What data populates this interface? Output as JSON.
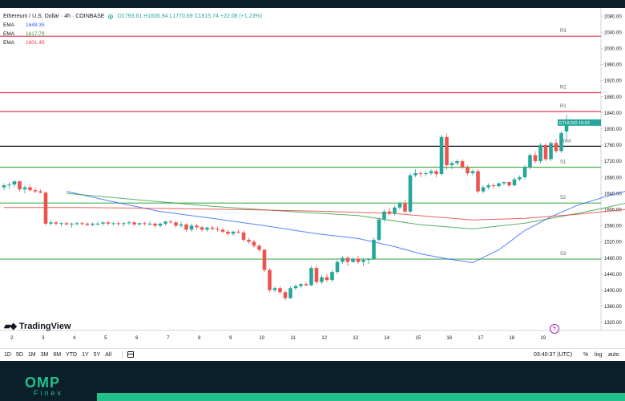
{
  "legend": {
    "symbol": "Ethereum / U.S. Dollar · 4h · COINBASE",
    "ohlc": "O1793.61 H1835.94 L1770.69 C1815.74 +22.08 (+1.23%)",
    "emas": [
      {
        "name": "EMA",
        "value": "1648.35",
        "color": "#2962ff"
      },
      {
        "name": "EMA",
        "value": "1617.79",
        "color": "#2e9e3c"
      },
      {
        "name": "EMA",
        "value": "1601.45",
        "color": "#e53935"
      }
    ]
  },
  "branding": {
    "chart_logo": "TradingView",
    "omp": "OMP",
    "finex": "Finex"
  },
  "toolbar": {
    "timeframes": [
      "1D",
      "5D",
      "1M",
      "3M",
      "6M",
      "YTD",
      "1Y",
      "5Y",
      "All"
    ],
    "clock": "03:40:37 (UTC)",
    "percent": "%",
    "log": "log",
    "auto": "auto"
  },
  "colors": {
    "up": "#26a69a",
    "down": "#ef5350",
    "resistance": "#e53950",
    "support": "#4caf50",
    "pivot": "#131722",
    "brand": "#22c08b"
  },
  "chart_data": {
    "type": "candlestick",
    "symbol": "ETHUSD",
    "last_price": "1815.74",
    "countdown": "19:53",
    "ylim": [
      1300,
      2100
    ],
    "y_ticks": [
      1320,
      1360,
      1400,
      1440,
      1480,
      1520,
      1560,
      1600,
      1640,
      1680,
      1720,
      1760,
      1800,
      1840,
      1880,
      1920,
      1960,
      2000,
      2040,
      2080
    ],
    "x_ticks": [
      "2",
      "3",
      "4",
      "5",
      "6",
      "7",
      "8",
      "9",
      "10",
      "11",
      "12",
      "13",
      "14",
      "15",
      "16",
      "17",
      "18",
      "19"
    ],
    "x_tick_positions": [
      1.5,
      7.5,
      13.5,
      19.5,
      25.5,
      31.5,
      37.5,
      43.5,
      49.5,
      55.5,
      61.5,
      67.5,
      73.5,
      79.5,
      85.5,
      91.5,
      97.5,
      103.5
    ],
    "levels": [
      {
        "label": "R3",
        "value": 2030,
        "kind": "resistance"
      },
      {
        "label": "R2",
        "value": 1890,
        "kind": "resistance"
      },
      {
        "label": "R1",
        "value": 1843,
        "kind": "resistance"
      },
      {
        "label": "Pivot",
        "value": 1757,
        "kind": "pivot"
      },
      {
        "label": "S1",
        "value": 1705,
        "kind": "support"
      },
      {
        "label": "S2",
        "value": 1616,
        "kind": "support"
      },
      {
        "label": "S3",
        "value": 1477,
        "kind": "support"
      }
    ],
    "candles": [
      [
        1655,
        1665,
        1648,
        1660
      ],
      [
        1660,
        1668,
        1650,
        1662
      ],
      [
        1662,
        1672,
        1655,
        1670
      ],
      [
        1670,
        1672,
        1645,
        1650
      ],
      [
        1650,
        1660,
        1640,
        1655
      ],
      [
        1655,
        1662,
        1645,
        1648
      ],
      [
        1648,
        1655,
        1640,
        1645
      ],
      [
        1645,
        1650,
        1640,
        1642
      ],
      [
        1642,
        1645,
        1560,
        1565
      ],
      [
        1565,
        1575,
        1560,
        1568
      ],
      [
        1568,
        1572,
        1560,
        1565
      ],
      [
        1565,
        1570,
        1558,
        1566
      ],
      [
        1566,
        1570,
        1560,
        1563
      ],
      [
        1563,
        1568,
        1555,
        1565
      ],
      [
        1565,
        1570,
        1560,
        1566
      ],
      [
        1566,
        1570,
        1560,
        1565
      ],
      [
        1565,
        1568,
        1558,
        1562
      ],
      [
        1562,
        1568,
        1558,
        1565
      ],
      [
        1565,
        1570,
        1560,
        1565
      ],
      [
        1565,
        1570,
        1560,
        1568
      ],
      [
        1568,
        1572,
        1560,
        1565
      ],
      [
        1565,
        1570,
        1560,
        1566
      ],
      [
        1566,
        1570,
        1560,
        1564
      ],
      [
        1564,
        1570,
        1558,
        1566
      ],
      [
        1566,
        1572,
        1562,
        1568
      ],
      [
        1568,
        1572,
        1560,
        1563
      ],
      [
        1563,
        1568,
        1560,
        1566
      ],
      [
        1566,
        1570,
        1560,
        1565
      ],
      [
        1565,
        1570,
        1560,
        1565
      ],
      [
        1565,
        1568,
        1555,
        1560
      ],
      [
        1560,
        1568,
        1555,
        1565
      ],
      [
        1565,
        1572,
        1560,
        1570
      ],
      [
        1570,
        1575,
        1565,
        1568
      ],
      [
        1568,
        1572,
        1555,
        1560
      ],
      [
        1560,
        1570,
        1555,
        1563
      ],
      [
        1563,
        1566,
        1545,
        1550
      ],
      [
        1550,
        1565,
        1545,
        1560
      ],
      [
        1560,
        1565,
        1550,
        1556
      ],
      [
        1556,
        1560,
        1545,
        1550
      ],
      [
        1550,
        1558,
        1545,
        1555
      ],
      [
        1555,
        1560,
        1548,
        1552
      ],
      [
        1552,
        1558,
        1545,
        1550
      ],
      [
        1550,
        1555,
        1540,
        1545
      ],
      [
        1545,
        1550,
        1535,
        1540
      ],
      [
        1540,
        1548,
        1535,
        1545
      ],
      [
        1545,
        1550,
        1540,
        1543
      ],
      [
        1543,
        1548,
        1520,
        1525
      ],
      [
        1525,
        1530,
        1515,
        1520
      ],
      [
        1520,
        1525,
        1505,
        1510
      ],
      [
        1510,
        1515,
        1495,
        1500
      ],
      [
        1500,
        1502,
        1445,
        1450
      ],
      [
        1450,
        1455,
        1395,
        1400
      ],
      [
        1400,
        1410,
        1395,
        1405
      ],
      [
        1405,
        1410,
        1390,
        1395
      ],
      [
        1395,
        1400,
        1375,
        1380
      ],
      [
        1380,
        1410,
        1378,
        1405
      ],
      [
        1405,
        1415,
        1400,
        1410
      ],
      [
        1410,
        1418,
        1405,
        1415
      ],
      [
        1415,
        1420,
        1410,
        1412
      ],
      [
        1412,
        1460,
        1410,
        1455
      ],
      [
        1455,
        1462,
        1415,
        1420
      ],
      [
        1420,
        1438,
        1415,
        1432
      ],
      [
        1432,
        1440,
        1420,
        1425
      ],
      [
        1425,
        1450,
        1420,
        1445
      ],
      [
        1445,
        1475,
        1440,
        1470
      ],
      [
        1470,
        1485,
        1465,
        1480
      ],
      [
        1480,
        1485,
        1460,
        1470
      ],
      [
        1470,
        1482,
        1468,
        1478
      ],
      [
        1478,
        1485,
        1465,
        1470
      ],
      [
        1470,
        1480,
        1460,
        1475
      ],
      [
        1475,
        1480,
        1465,
        1478
      ],
      [
        1478,
        1530,
        1475,
        1525
      ],
      [
        1525,
        1580,
        1520,
        1575
      ],
      [
        1575,
        1600,
        1570,
        1595
      ],
      [
        1595,
        1605,
        1585,
        1590
      ],
      [
        1590,
        1610,
        1585,
        1605
      ],
      [
        1605,
        1620,
        1600,
        1615
      ],
      [
        1615,
        1625,
        1590,
        1595
      ],
      [
        1595,
        1690,
        1590,
        1685
      ],
      [
        1685,
        1700,
        1680,
        1690
      ],
      [
        1690,
        1695,
        1680,
        1688
      ],
      [
        1688,
        1695,
        1682,
        1690
      ],
      [
        1690,
        1700,
        1685,
        1695
      ],
      [
        1695,
        1700,
        1680,
        1688
      ],
      [
        1688,
        1785,
        1685,
        1780
      ],
      [
        1780,
        1788,
        1700,
        1710
      ],
      [
        1710,
        1720,
        1700,
        1715
      ],
      [
        1715,
        1725,
        1710,
        1720
      ],
      [
        1720,
        1725,
        1700,
        1705
      ],
      [
        1705,
        1710,
        1685,
        1690
      ],
      [
        1690,
        1700,
        1685,
        1695
      ],
      [
        1695,
        1700,
        1640,
        1645
      ],
      [
        1645,
        1660,
        1640,
        1655
      ],
      [
        1655,
        1665,
        1650,
        1660
      ],
      [
        1660,
        1665,
        1652,
        1658
      ],
      [
        1658,
        1668,
        1655,
        1665
      ],
      [
        1665,
        1670,
        1660,
        1668
      ],
      [
        1668,
        1670,
        1655,
        1660
      ],
      [
        1660,
        1680,
        1658,
        1675
      ],
      [
        1675,
        1685,
        1670,
        1680
      ],
      [
        1680,
        1710,
        1675,
        1705
      ],
      [
        1705,
        1740,
        1700,
        1735
      ],
      [
        1735,
        1745,
        1715,
        1720
      ],
      [
        1720,
        1765,
        1715,
        1760
      ],
      [
        1760,
        1765,
        1720,
        1725
      ],
      [
        1725,
        1770,
        1720,
        1765
      ],
      [
        1765,
        1775,
        1740,
        1745
      ],
      [
        1745,
        1795,
        1740,
        1790
      ],
      [
        1793.61,
        1835.94,
        1770.69,
        1815.74
      ]
    ],
    "ema_series": [
      {
        "name": "EMA",
        "value": "1648.35",
        "color": "#2962ff",
        "points": [
          [
            12,
            1645
          ],
          [
            20,
            1622
          ],
          [
            30,
            1595
          ],
          [
            40,
            1578
          ],
          [
            50,
            1560
          ],
          [
            60,
            1540
          ],
          [
            68,
            1528
          ],
          [
            75,
            1508
          ],
          [
            80,
            1490
          ],
          [
            85,
            1478
          ],
          [
            90,
            1468
          ],
          [
            95,
            1500
          ],
          [
            100,
            1548
          ],
          [
            105,
            1582
          ],
          [
            110,
            1610
          ],
          [
            115,
            1630
          ],
          [
            120,
            1648
          ]
        ]
      },
      {
        "name": "EMA",
        "value": "1617.79",
        "color": "#2e9e3c",
        "points": [
          [
            12,
            1640
          ],
          [
            25,
            1625
          ],
          [
            40,
            1608
          ],
          [
            55,
            1595
          ],
          [
            68,
            1585
          ],
          [
            80,
            1562
          ],
          [
            90,
            1552
          ],
          [
            100,
            1566
          ],
          [
            110,
            1590
          ],
          [
            115,
            1603
          ],
          [
            120,
            1618
          ]
        ]
      },
      {
        "name": "EMA",
        "value": "1601.45",
        "color": "#e53935",
        "points": [
          [
            0,
            1605
          ],
          [
            15,
            1605
          ],
          [
            30,
            1603
          ],
          [
            45,
            1600
          ],
          [
            60,
            1596
          ],
          [
            75,
            1590
          ],
          [
            90,
            1574
          ],
          [
            100,
            1578
          ],
          [
            110,
            1588
          ],
          [
            120,
            1601
          ]
        ]
      }
    ]
  }
}
